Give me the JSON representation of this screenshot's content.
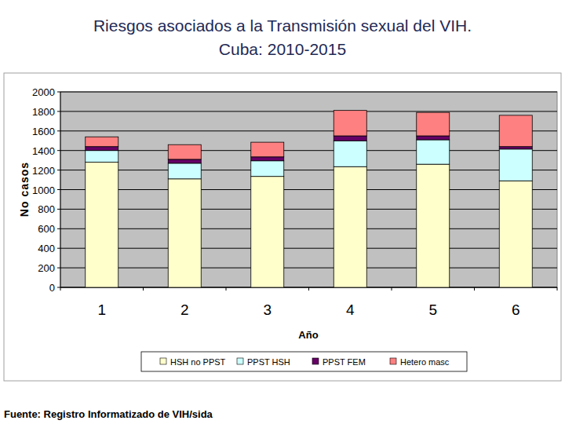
{
  "chart_data": {
    "type": "bar",
    "title": "Riesgos asociados a la Transmisión sexual del VIH.",
    "subtitle": "Cuba: 2010-2015",
    "x_label": "Año",
    "y_label": "No casos",
    "annotations": [
      "Fuente: Registro Informatizado de VIH/sida"
    ],
    "categories": [
      "1",
      "2",
      "3",
      "4",
      "5",
      "6"
    ],
    "series": [
      {
        "name": "HSH no PPST",
        "color": "#ffffcc",
        "values": [
          1280,
          1110,
          1135,
          1235,
          1260,
          1090
        ]
      },
      {
        "name": "PPST HSH",
        "color": "#ccffff",
        "values": [
          120,
          160,
          160,
          265,
          250,
          325
        ]
      },
      {
        "name": "PPST FEM",
        "color": "#660066",
        "values": [
          40,
          40,
          40,
          50,
          40,
          25
        ]
      },
      {
        "name": "Hetero masc",
        "color": "#ff8080",
        "values": [
          100,
          150,
          150,
          260,
          240,
          320
        ]
      }
    ],
    "ylim": [
      0,
      2000
    ],
    "yticks": [
      0,
      200,
      400,
      600,
      800,
      1000,
      1200,
      1400,
      1600,
      1800,
      2000
    ],
    "stacked": true,
    "grid": true,
    "legend": "bottom"
  }
}
